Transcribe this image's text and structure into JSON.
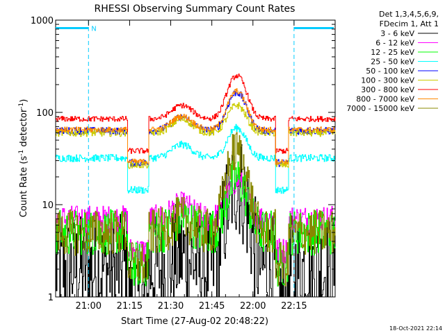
{
  "chart_data": {
    "type": "line",
    "title": "RHESSI Observing Summary Count Rates",
    "xlabel": "Start Time (27-Aug-02 20:48:22)",
    "ylabel": "Count Rate (s",
    "ylabel_sup1": "-1",
    "ylabel_mid": " detector",
    "ylabel_sup2": "-1",
    "ylabel_end": ")",
    "yscale": "log",
    "ylim": [
      1,
      1000
    ],
    "xlim_min": [
      0,
      102
    ],
    "x_unit": "minutes since 20:48:22",
    "x_ticks": [
      {
        "min": 12,
        "label": "21:00"
      },
      {
        "min": 27,
        "label": "21:15"
      },
      {
        "min": 42,
        "label": "21:30"
      },
      {
        "min": 57,
        "label": "21:45"
      },
      {
        "min": 72,
        "label": "22:00"
      },
      {
        "min": 87,
        "label": "22:15"
      }
    ],
    "y_ticks": [
      {
        "value": 1,
        "label": "1"
      },
      {
        "value": 10,
        "label": "10"
      },
      {
        "value": 100,
        "label": "100"
      },
      {
        "value": 1000,
        "label": "1000"
      }
    ],
    "legend_header": [
      "Det 1,3,4,5,6,9,",
      "FDecim 1, Att 1"
    ],
    "legend_position": "right",
    "series": [
      {
        "name": "3 - 6 keV",
        "color": "#000000",
        "base": 2.0,
        "peak": 17,
        "noise": 0.6
      },
      {
        "name": "6 - 12 keV",
        "color": "#ff00ff",
        "base": 7.0,
        "peak": 18,
        "noise": 0.15
      },
      {
        "name": "12 - 25 keV",
        "color": "#00ff00",
        "base": 5.0,
        "peak": 19,
        "noise": 0.25
      },
      {
        "name": "25 - 50 keV",
        "color": "#00ffff",
        "base": 32,
        "peak": 68,
        "noise": 0.04
      },
      {
        "name": "50 - 100 keV",
        "color": "#0000ff",
        "base": 63,
        "peak": 165,
        "noise": 0.04
      },
      {
        "name": "100 - 300 keV",
        "color": "#cccc00",
        "base": 60,
        "peak": 120,
        "noise": 0.04
      },
      {
        "name": "300 - 800 keV",
        "color": "#ff0000",
        "base": 85,
        "peak": 250,
        "noise": 0.03
      },
      {
        "name": "800 - 7000 keV",
        "color": "#ff8800",
        "base": 65,
        "peak": 170,
        "noise": 0.03
      },
      {
        "name": "7000 - 15000 keV",
        "color": "#888800",
        "base": 5.0,
        "peak": 38,
        "noise": 0.25
      }
    ],
    "annotations": [
      {
        "text": "N",
        "color": "#00ccff",
        "min": 12
      }
    ],
    "footer_date": "18-Oct-2021 22:14"
  }
}
